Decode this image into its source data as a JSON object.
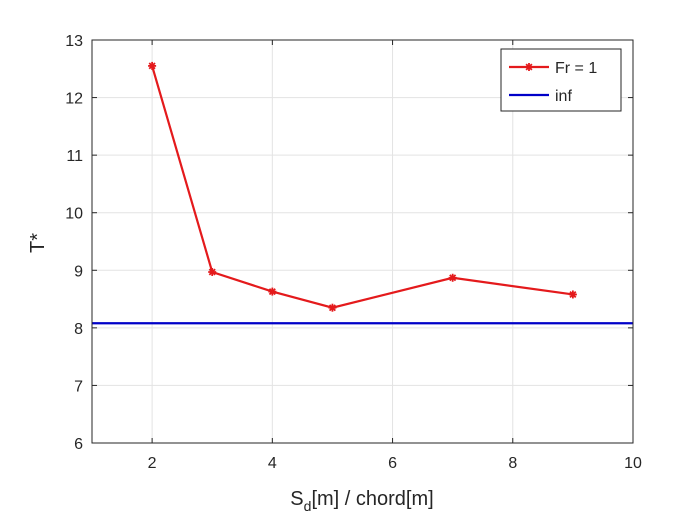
{
  "chart_data": {
    "type": "line",
    "title": "",
    "xlabel": {
      "main": "S",
      "sub": "d",
      "rest": "[m] / chord[m]"
    },
    "ylabel": "T*",
    "xlim": [
      1,
      10
    ],
    "ylim": [
      6,
      13
    ],
    "xticks": [
      "2",
      "4",
      "6",
      "8",
      "10"
    ],
    "yticks": [
      "6",
      "7",
      "8",
      "9",
      "10",
      "11",
      "12",
      "13"
    ],
    "grid": true,
    "legend_position": "top-right",
    "series": [
      {
        "name": "Fr = 1",
        "color": "#e41a1c",
        "marker": "asterisk",
        "x": [
          2,
          3,
          4,
          5,
          7,
          9
        ],
        "y": [
          12.55,
          8.97,
          8.63,
          8.35,
          8.87,
          8.58
        ]
      },
      {
        "name": "inf",
        "color": "#0000c8",
        "marker": "none",
        "hline": 8.08
      }
    ]
  }
}
